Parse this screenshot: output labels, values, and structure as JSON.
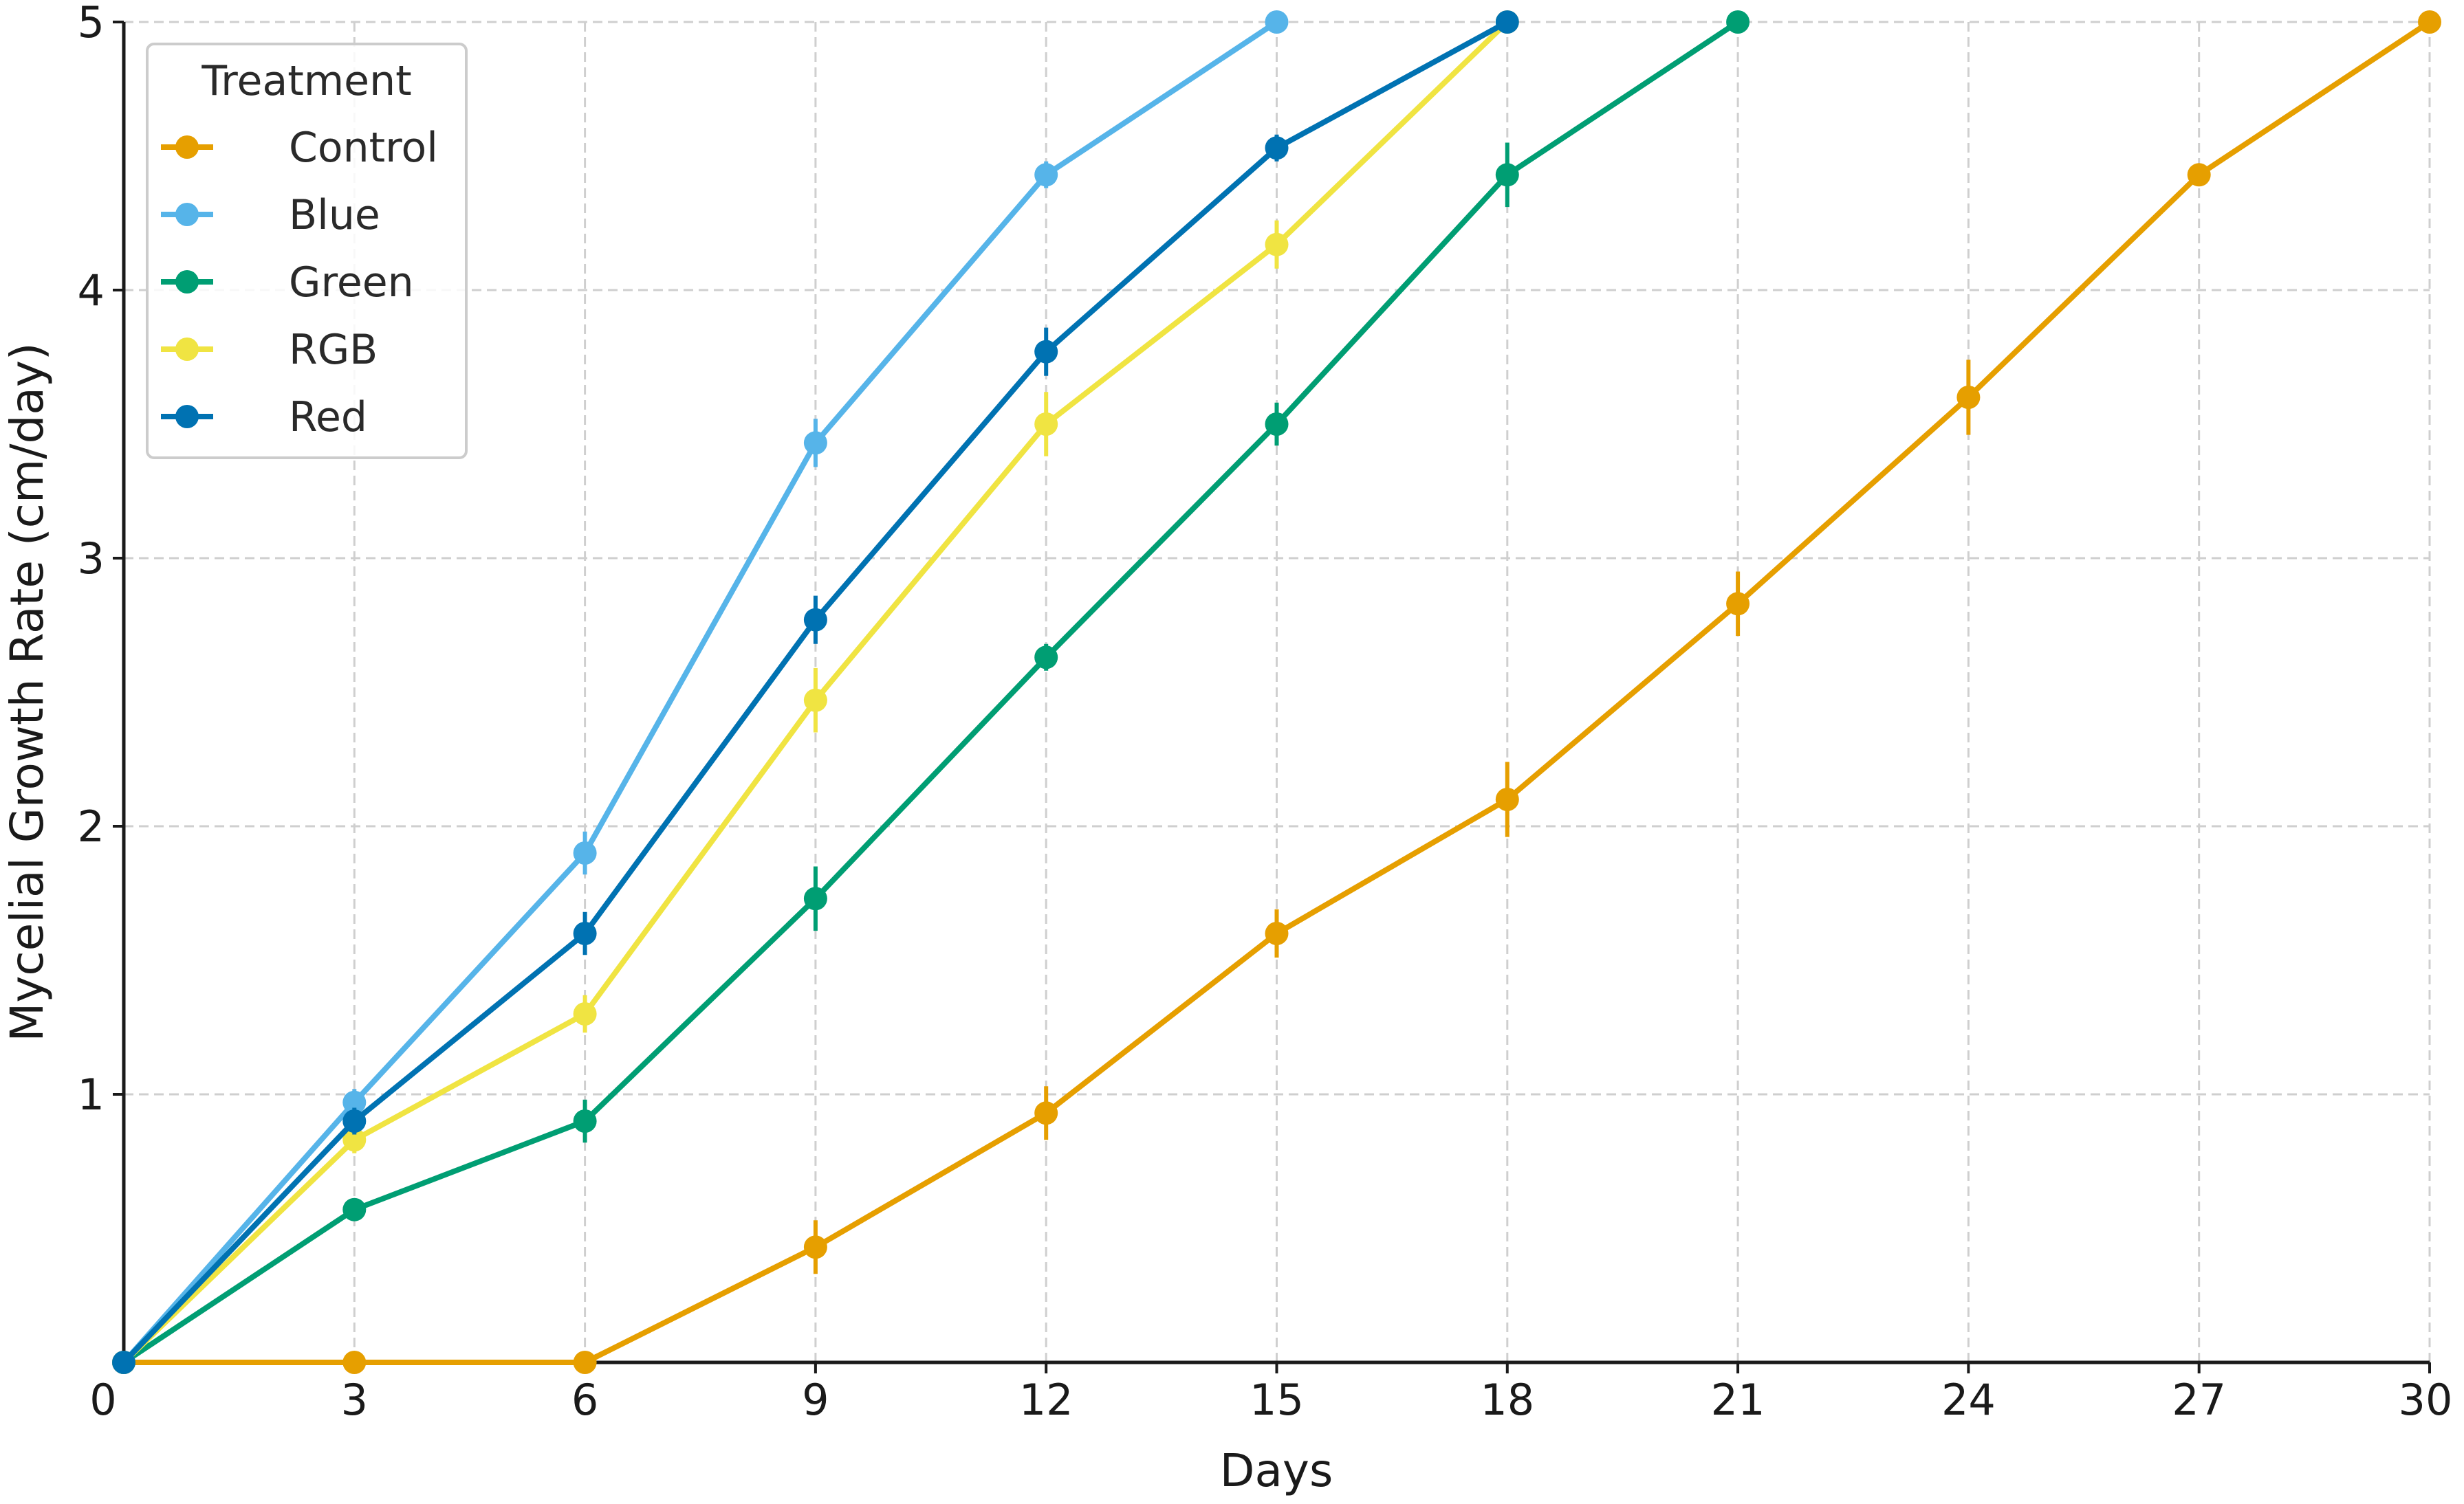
{
  "chart_data": {
    "type": "line",
    "title": "",
    "xlabel": "Days",
    "ylabel": "Mycelial Growth Rate (cm/day)",
    "xlim": [
      0,
      30
    ],
    "ylim": [
      0,
      5
    ],
    "xticks": [
      0,
      3,
      6,
      9,
      12,
      15,
      18,
      21,
      24,
      27,
      30
    ],
    "yticks": [
      1,
      2,
      3,
      4,
      5
    ],
    "grid": true,
    "legend": {
      "title": "Treatment",
      "placement": "top-left"
    },
    "series": [
      {
        "name": "Control",
        "color": "#E69F00",
        "x": [
          0,
          3,
          6,
          9,
          12,
          15,
          18,
          21,
          24,
          27,
          30
        ],
        "y": [
          0,
          0,
          0,
          0.43,
          0.93,
          1.6,
          2.1,
          2.83,
          3.6,
          4.43,
          5.0
        ],
        "err": [
          0,
          0,
          0,
          0.1,
          0.1,
          0.09,
          0.14,
          0.12,
          0.14,
          0,
          0
        ]
      },
      {
        "name": "Blue",
        "color": "#56B4E9",
        "x": [
          0,
          3,
          6,
          9,
          12,
          15
        ],
        "y": [
          0,
          0.97,
          1.9,
          3.43,
          4.43,
          5.0
        ],
        "err": [
          0,
          0.05,
          0.08,
          0.09,
          0.05,
          0
        ]
      },
      {
        "name": "Green",
        "color": "#009E73",
        "x": [
          0,
          3,
          6,
          9,
          12,
          15,
          18,
          21
        ],
        "y": [
          0,
          0.57,
          0.9,
          1.73,
          2.63,
          3.5,
          4.43,
          5.0
        ],
        "err": [
          0,
          0.04,
          0.08,
          0.12,
          0.05,
          0.08,
          0.12,
          0
        ]
      },
      {
        "name": "RGB",
        "color": "#F0E442",
        "x": [
          0,
          3,
          6,
          9,
          12,
          15,
          18
        ],
        "y": [
          0,
          0.83,
          1.3,
          2.47,
          3.5,
          4.17,
          5.0
        ],
        "err": [
          0,
          0.05,
          0.07,
          0.12,
          0.12,
          0.09,
          0
        ]
      },
      {
        "name": "Red",
        "color": "#0072B2",
        "x": [
          0,
          3,
          6,
          9,
          12,
          15,
          18
        ],
        "y": [
          0,
          0.9,
          1.6,
          2.77,
          3.77,
          4.53,
          5.0
        ],
        "err": [
          0,
          0.05,
          0.08,
          0.09,
          0.09,
          0.05,
          0
        ]
      }
    ]
  }
}
